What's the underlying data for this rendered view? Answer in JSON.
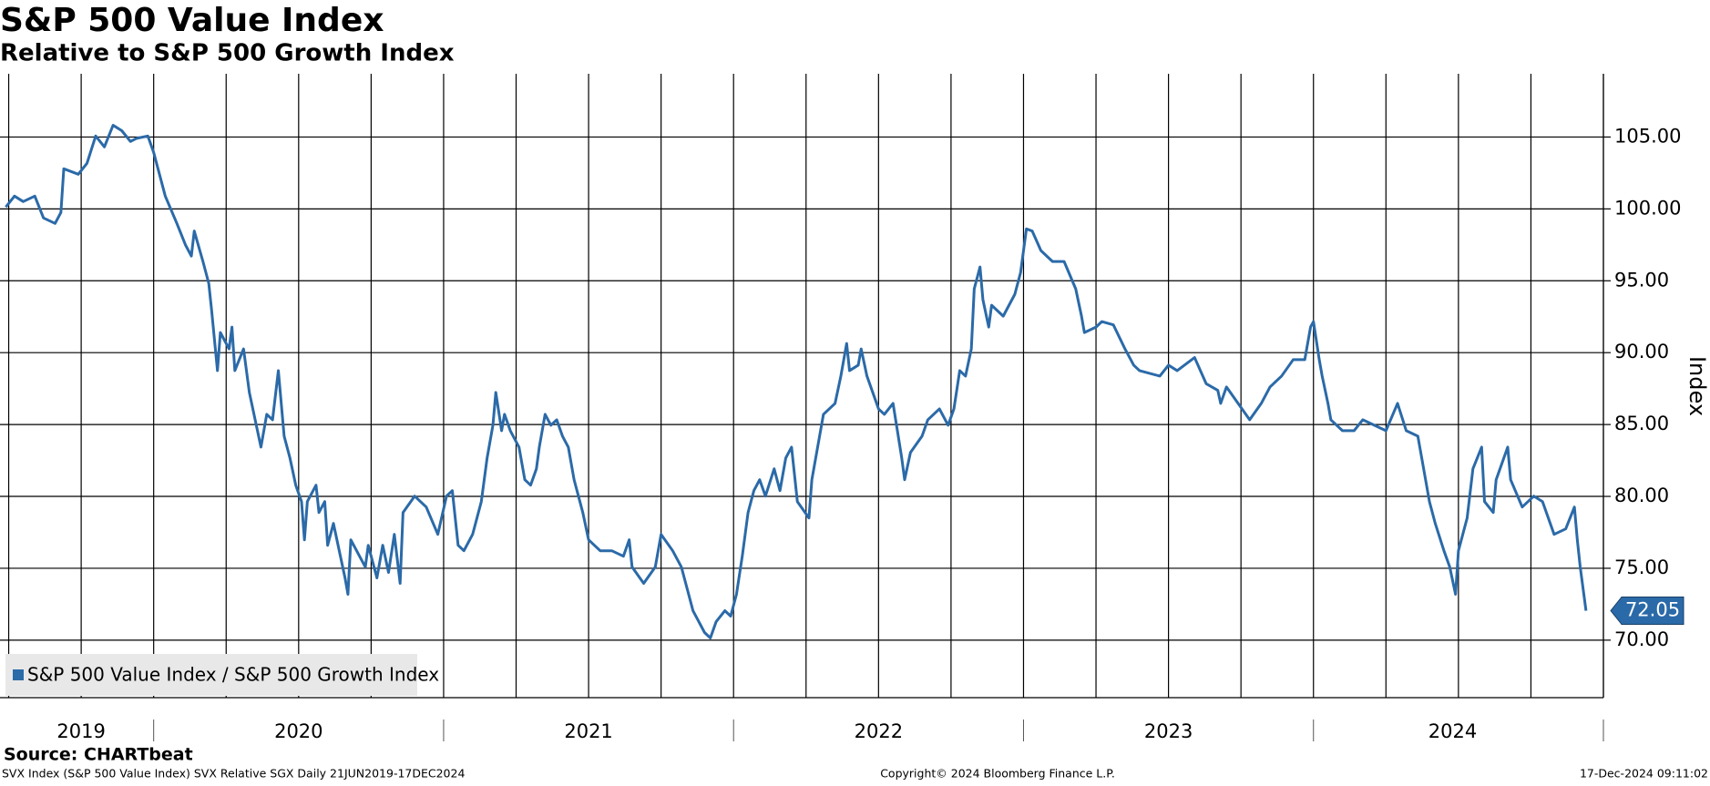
{
  "chart_data": {
    "type": "line",
    "title": "S&P 500 Value Index",
    "subtitle": "Relative to S&P 500 Growth Index",
    "y_label": "Index",
    "source": "Source: CHARTbeat",
    "footer_left": "SVX Index (S&P 500 Value Index) SVX Relative SGX  Daily 21JUN2019-17DEC2024",
    "footer_center": "Copyright© 2024 Bloomberg Finance L.P.",
    "footer_right": "17-Dec-2024 09:11:02",
    "xlim": [
      2019.47,
      2025.0
    ],
    "xticks": [
      {
        "value": 2019.75,
        "label": "2019"
      },
      {
        "value": 2020.5,
        "label": "2020"
      },
      {
        "value": 2021.5,
        "label": "2021"
      },
      {
        "value": 2022.5,
        "label": "2022"
      },
      {
        "value": 2023.5,
        "label": "2023"
      },
      {
        "value": 2024.48,
        "label": "2024"
      }
    ],
    "year_bounds": [
      2020,
      2021,
      2022,
      2023,
      2024,
      2025
    ],
    "xgrid": [
      2019.5,
      2019.75,
      2020,
      2020.25,
      2020.5,
      2020.75,
      2021,
      2021.25,
      2021.5,
      2021.75,
      2022,
      2022.25,
      2022.5,
      2022.75,
      2023,
      2023.25,
      2023.5,
      2023.75,
      2024,
      2024.25,
      2024.5,
      2024.75,
      2025
    ],
    "ylim": [
      66,
      109.4
    ],
    "yticks": [
      {
        "value": 70,
        "label": "70.00"
      },
      {
        "value": 75,
        "label": "75.00"
      },
      {
        "value": 80,
        "label": "80.00"
      },
      {
        "value": 85,
        "label": "85.00"
      },
      {
        "value": 90,
        "label": "90.00"
      },
      {
        "value": 95,
        "label": "95.00"
      },
      {
        "value": 100,
        "label": "100.00"
      },
      {
        "value": 105,
        "label": "105.00"
      }
    ],
    "grid": true,
    "legend": "bottom-left",
    "x": [
      2019.49,
      2019.52,
      2019.55,
      2019.59,
      2019.62,
      2019.66,
      2019.68,
      2019.69,
      2019.74,
      2019.77,
      2019.8,
      2019.83,
      2019.86,
      2019.89,
      2019.92,
      2019.94,
      2019.98,
      2020.0,
      2020.04,
      2020.08,
      2020.11,
      2020.13,
      2020.14,
      2020.17,
      2020.19,
      2020.2,
      2020.22,
      2020.23,
      2020.26,
      2020.27,
      2020.28,
      2020.31,
      2020.33,
      2020.35,
      2020.37,
      2020.39,
      2020.41,
      2020.43,
      2020.45,
      2020.47,
      2020.49,
      2020.51,
      2020.52,
      2020.53,
      2020.56,
      2020.57,
      2020.59,
      2020.6,
      2020.62,
      2020.64,
      2020.66,
      2020.67,
      2020.68,
      2020.71,
      2020.73,
      2020.74,
      2020.77,
      2020.79,
      2020.81,
      2020.83,
      2020.85,
      2020.86,
      2020.9,
      2020.94,
      2020.98,
      2021.01,
      2021.03,
      2021.05,
      2021.07,
      2021.1,
      2021.13,
      2021.15,
      2021.17,
      2021.18,
      2021.2,
      2021.21,
      2021.23,
      2021.26,
      2021.28,
      2021.3,
      2021.32,
      2021.33,
      2021.35,
      2021.37,
      2021.39,
      2021.41,
      2021.43,
      2021.45,
      2021.47,
      2021.48,
      2021.5,
      2021.54,
      2021.58,
      2021.62,
      2021.64,
      2021.65,
      2021.69,
      2021.73,
      2021.75,
      2021.79,
      2021.82,
      2021.84,
      2021.86,
      2021.9,
      2021.92,
      2021.94,
      2021.97,
      2021.99,
      2022.01,
      2022.03,
      2022.05,
      2022.07,
      2022.09,
      2022.11,
      2022.14,
      2022.16,
      2022.18,
      2022.2,
      2022.22,
      2022.26,
      2022.27,
      2022.29,
      2022.31,
      2022.35,
      2022.37,
      2022.39,
      2022.4,
      2022.43,
      2022.44,
      2022.46,
      2022.5,
      2022.52,
      2022.55,
      2022.58,
      2022.59,
      2022.61,
      2022.65,
      2022.67,
      2022.71,
      2022.74,
      2022.76,
      2022.78,
      2022.8,
      2022.82,
      2022.83,
      2022.85,
      2022.86,
      2022.88,
      2022.89,
      2022.93,
      2022.97,
      2022.99,
      2023.01,
      2023.03,
      2023.06,
      2023.1,
      2023.14,
      2023.18,
      2023.2,
      2023.21,
      2023.25,
      2023.27,
      2023.31,
      2023.35,
      2023.38,
      2023.4,
      2023.47,
      2023.5,
      2023.53,
      2023.59,
      2023.63,
      2023.67,
      2023.68,
      2023.7,
      2023.74,
      2023.78,
      2023.82,
      2023.85,
      2023.89,
      2023.93,
      2023.97,
      2023.99,
      2024.0,
      2024.02,
      2024.03,
      2024.05,
      2024.06,
      2024.1,
      2024.14,
      2024.17,
      2024.21,
      2024.25,
      2024.29,
      2024.32,
      2024.36,
      2024.38,
      2024.4,
      2024.42,
      2024.45,
      2024.47,
      2024.49,
      2024.5,
      2024.53,
      2024.55,
      2024.58,
      2024.59,
      2024.62,
      2024.63,
      2024.67,
      2024.68,
      2024.72,
      2024.76,
      2024.79,
      2024.83,
      2024.87,
      2024.9,
      2024.91,
      2024.92,
      2024.94
    ],
    "series": [
      {
        "name": "S&P 500 Value Index / S&P 500 Growth Index",
        "color": "#2b6aa8",
        "values": [
          100.13,
          100.89,
          100.51,
          100.89,
          99.37,
          98.99,
          99.75,
          102.79,
          102.41,
          103.17,
          105.07,
          104.31,
          105.82,
          105.44,
          104.69,
          104.9,
          105.07,
          103.93,
          100.89,
          98.99,
          97.48,
          96.72,
          98.46,
          96.34,
          94.82,
          92.92,
          88.75,
          91.4,
          90.26,
          91.78,
          88.75,
          90.26,
          87.23,
          85.33,
          83.43,
          85.71,
          85.33,
          88.75,
          84.19,
          82.67,
          80.78,
          79.64,
          76.98,
          79.64,
          80.78,
          78.88,
          79.64,
          76.6,
          78.12,
          76.22,
          74.33,
          73.19,
          76.98,
          75.84,
          75.09,
          76.6,
          74.33,
          76.6,
          74.71,
          77.36,
          73.95,
          78.88,
          80.02,
          79.26,
          77.36,
          80.02,
          80.4,
          76.6,
          76.22,
          77.36,
          79.64,
          82.67,
          84.95,
          87.23,
          84.57,
          85.71,
          84.57,
          83.43,
          81.16,
          80.78,
          81.92,
          83.43,
          85.71,
          84.95,
          85.33,
          84.19,
          83.43,
          81.16,
          79.64,
          78.88,
          76.98,
          76.22,
          76.22,
          75.84,
          76.98,
          75.09,
          73.95,
          75.09,
          77.36,
          76.22,
          75.09,
          73.57,
          72.05,
          70.53,
          70.15,
          71.29,
          72.05,
          71.67,
          73.19,
          75.84,
          78.88,
          80.4,
          81.16,
          80.02,
          81.92,
          80.4,
          82.67,
          83.43,
          79.64,
          78.5,
          81.16,
          83.43,
          85.71,
          86.47,
          88.37,
          90.64,
          88.75,
          89.13,
          90.26,
          88.37,
          86.09,
          85.71,
          86.47,
          82.67,
          81.16,
          83.05,
          84.19,
          85.33,
          86.09,
          84.95,
          86.09,
          88.75,
          88.37,
          90.26,
          94.44,
          95.96,
          93.68,
          91.78,
          93.3,
          92.54,
          94.06,
          95.58,
          98.61,
          98.46,
          97.1,
          96.34,
          96.34,
          94.44,
          92.54,
          91.4,
          91.78,
          92.16,
          91.93,
          90.26,
          89.13,
          88.75,
          88.37,
          89.13,
          88.75,
          89.66,
          87.84,
          87.38,
          86.47,
          87.61,
          86.47,
          85.33,
          86.47,
          87.61,
          88.37,
          89.51,
          89.51,
          91.78,
          92.16,
          89.51,
          88.37,
          86.47,
          85.33,
          84.57,
          84.57,
          85.33,
          84.95,
          84.57,
          86.47,
          84.57,
          84.19,
          81.92,
          79.64,
          78.12,
          76.22,
          75.09,
          73.19,
          76.22,
          78.5,
          81.92,
          83.43,
          79.64,
          78.88,
          81.16,
          83.43,
          81.16,
          79.26,
          80.02,
          79.64,
          77.36,
          77.74,
          79.26,
          76.98,
          75.09,
          72.05
        ]
      }
    ]
  }
}
